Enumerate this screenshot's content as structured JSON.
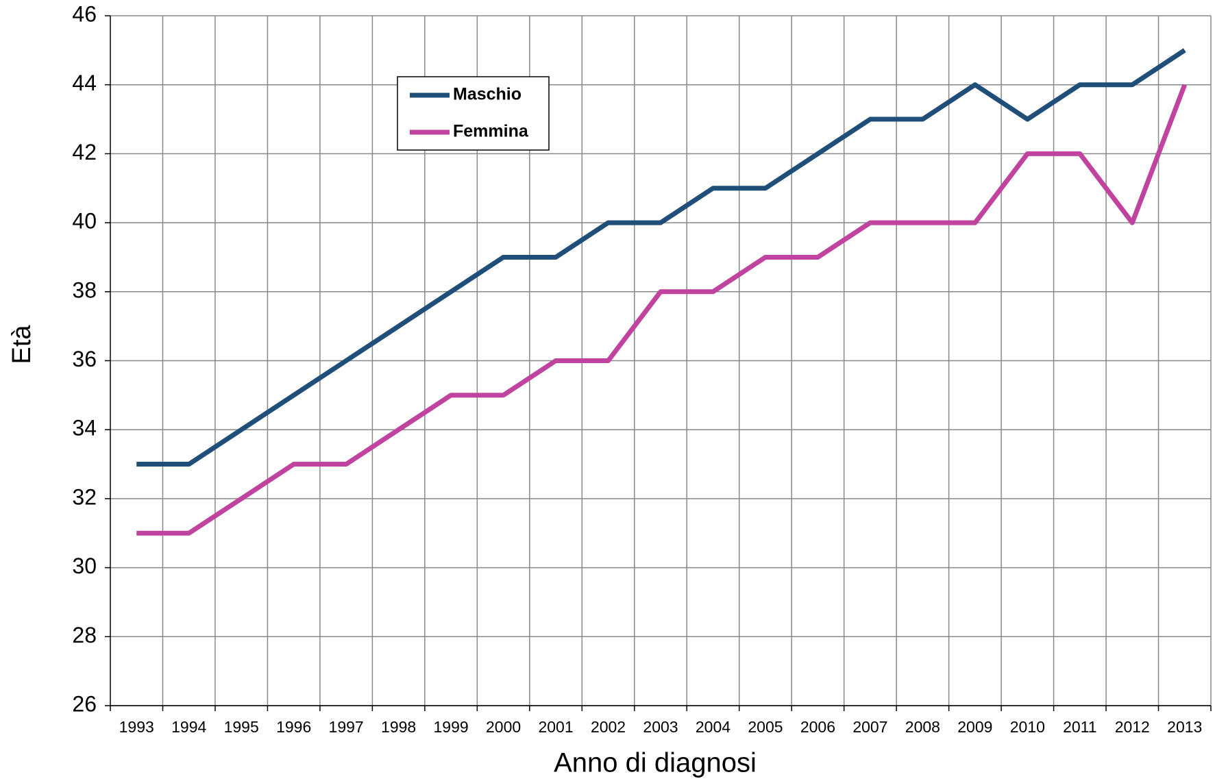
{
  "chart_data": {
    "type": "line",
    "x_label": "Anno di diagnosi",
    "y_label": "Età",
    "categories": [
      "1993",
      "1994",
      "1995",
      "1996",
      "1997",
      "1998",
      "1999",
      "2000",
      "2001",
      "2002",
      "2003",
      "2004",
      "2005",
      "2006",
      "2007",
      "2008",
      "2009",
      "2010",
      "2011",
      "2012",
      "2013"
    ],
    "series": [
      {
        "name": "Maschio",
        "color": "#1f4e79",
        "values": [
          33,
          33,
          34,
          35,
          36,
          37,
          38,
          39,
          39,
          40,
          40,
          41,
          41,
          42,
          43,
          43,
          44,
          43,
          44,
          44,
          45
        ]
      },
      {
        "name": "Femmina",
        "color": "#c0449f",
        "values": [
          31,
          31,
          32,
          33,
          33,
          34,
          35,
          35,
          36,
          36,
          38,
          38,
          39,
          39,
          40,
          40,
          40,
          42,
          42,
          40,
          44
        ]
      }
    ],
    "ylim": [
      26,
      46
    ],
    "yticks": [
      26,
      28,
      30,
      32,
      34,
      36,
      38,
      40,
      42,
      44,
      46
    ],
    "grid": true
  }
}
